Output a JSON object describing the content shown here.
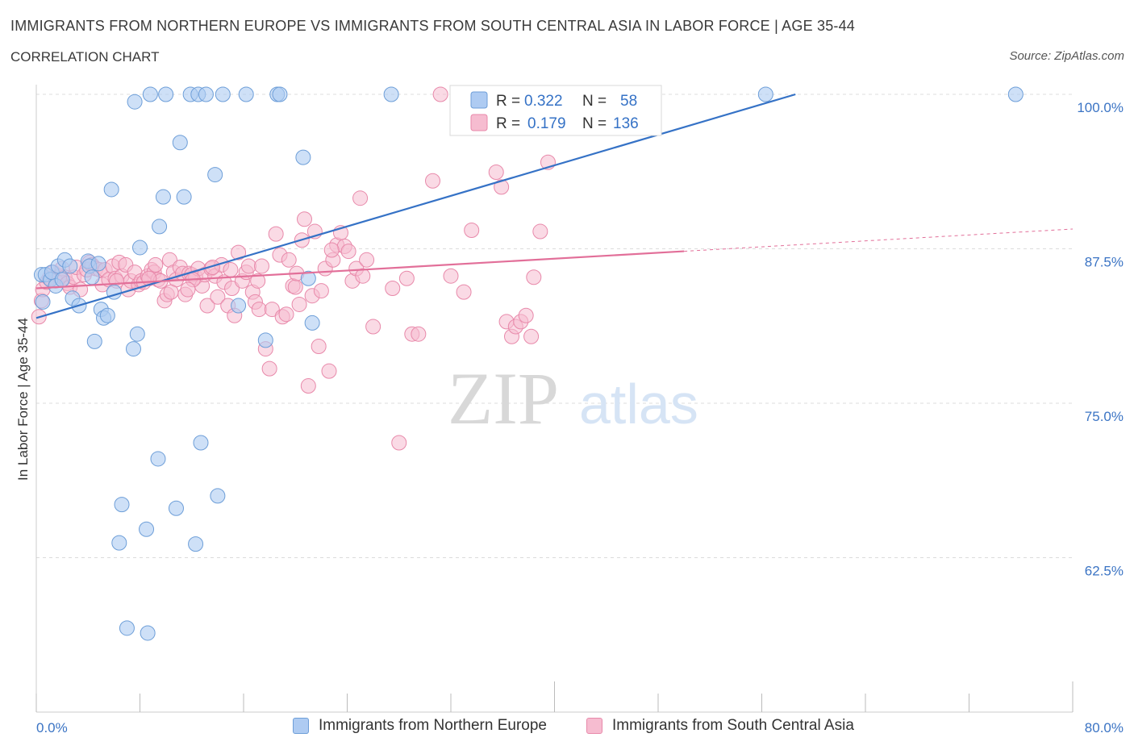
{
  "header": {
    "title": "IMMIGRANTS FROM NORTHERN EUROPE VS IMMIGRANTS FROM SOUTH CENTRAL ASIA IN LABOR FORCE | AGE 35-44",
    "subtitle": "CORRELATION CHART",
    "source": "Source: ZipAtlas.com"
  },
  "watermark": {
    "zip": "ZIP",
    "atlas": "atlas"
  },
  "colors": {
    "blue_fill": "#aecbf2",
    "blue_stroke": "#6d9ed8",
    "blue_line": "#3572c6",
    "pink_fill": "#f6bcd0",
    "pink_stroke": "#e889aa",
    "pink_line": "#e26f99",
    "tick_text": "#3b74c4",
    "grid": "#dcdcdc"
  },
  "legend_box": {
    "rows": [
      {
        "r_label": "R =",
        "r_value": "0.322",
        "n_label": "N =",
        "n_value": "58"
      },
      {
        "r_label": "R =",
        "r_value": "0.179",
        "n_label": "N =",
        "n_value": "136"
      }
    ]
  },
  "chart_data": {
    "type": "scatter",
    "title": "IMMIGRANTS FROM NORTHERN EUROPE VS IMMIGRANTS FROM SOUTH CENTRAL ASIA IN LABOR FORCE | AGE 35-44",
    "ylabel": "In Labor Force | Age 35-44",
    "xlabel": "",
    "xlim": [
      0,
      80
    ],
    "ylim": [
      50,
      100
    ],
    "x_tick_labels": [
      "0.0%",
      "80.0%"
    ],
    "y_ticks": [
      62.5,
      75.0,
      87.5,
      100.0
    ],
    "y_tick_labels": [
      "62.5%",
      "75.0%",
      "87.5%",
      "100.0%"
    ],
    "grid": true,
    "legend_position": "top-center",
    "series": [
      {
        "name": "Immigrants from Northern Europe",
        "color": "#aecbf2",
        "R": 0.322,
        "N": 58,
        "trend": {
          "x": [
            0,
            58.6
          ],
          "y": [
            81.9,
            100.0
          ],
          "extends_to": 58.6
        },
        "points": [
          [
            0.4,
            85.4
          ],
          [
            0.7,
            85.4
          ],
          [
            1.1,
            85.0
          ],
          [
            1.2,
            85.6
          ],
          [
            1.5,
            84.5
          ],
          [
            1.7,
            86.1
          ],
          [
            2.2,
            86.6
          ],
          [
            2.6,
            86.1
          ],
          [
            2.8,
            83.5
          ],
          [
            3.3,
            82.9
          ],
          [
            4.0,
            86.5
          ],
          [
            4.1,
            86.1
          ],
          [
            4.3,
            85.2
          ],
          [
            4.5,
            80.0
          ],
          [
            4.8,
            86.3
          ],
          [
            5.0,
            82.6
          ],
          [
            5.2,
            81.9
          ],
          [
            5.5,
            82.1
          ],
          [
            5.8,
            92.3
          ],
          [
            6.0,
            84.0
          ],
          [
            6.6,
            66.8
          ],
          [
            7.0,
            56.8
          ],
          [
            7.6,
            99.4
          ],
          [
            7.8,
            80.6
          ],
          [
            7.5,
            79.4
          ],
          [
            8.0,
            87.6
          ],
          [
            8.5,
            64.8
          ],
          [
            8.6,
            56.4
          ],
          [
            8.8,
            100.0
          ],
          [
            9.4,
            70.5
          ],
          [
            9.5,
            89.3
          ],
          [
            9.8,
            91.7
          ],
          [
            10.0,
            100.0
          ],
          [
            10.8,
            66.5
          ],
          [
            11.1,
            96.1
          ],
          [
            11.4,
            91.7
          ],
          [
            11.9,
            100.0
          ],
          [
            12.3,
            63.6
          ],
          [
            12.5,
            100.0
          ],
          [
            12.7,
            71.8
          ],
          [
            13.1,
            100.0
          ],
          [
            13.8,
            93.5
          ],
          [
            14.0,
            67.5
          ],
          [
            14.4,
            100.0
          ],
          [
            15.6,
            82.9
          ],
          [
            16.2,
            100.0
          ],
          [
            17.7,
            80.1
          ],
          [
            18.6,
            100.0
          ],
          [
            18.8,
            100.0
          ],
          [
            20.6,
            94.9
          ],
          [
            21.0,
            85.1
          ],
          [
            21.3,
            81.5
          ],
          [
            27.4,
            100.0
          ],
          [
            6.4,
            63.7
          ],
          [
            56.3,
            100.0
          ],
          [
            75.6,
            100.0
          ],
          [
            0.5,
            83.2
          ],
          [
            2.0,
            85.0
          ]
        ]
      },
      {
        "name": "Immigrants from South Central Asia",
        "color": "#f6bcd0",
        "R": 0.179,
        "N": 136,
        "trend": {
          "x": [
            0,
            50.0,
            80.0
          ],
          "y": [
            84.3,
            87.3,
            89.1
          ],
          "dashed_from": 50.0
        },
        "points": [
          [
            0.2,
            82.0
          ],
          [
            0.4,
            83.3
          ],
          [
            0.5,
            84.2
          ],
          [
            0.8,
            84.8
          ],
          [
            1.0,
            85.1
          ],
          [
            1.3,
            85.6
          ],
          [
            1.5,
            84.9
          ],
          [
            1.8,
            85.3
          ],
          [
            2.0,
            85.9
          ],
          [
            2.2,
            85.2
          ],
          [
            2.4,
            84.7
          ],
          [
            2.6,
            84.4
          ],
          [
            2.9,
            85.2
          ],
          [
            3.1,
            86.0
          ],
          [
            3.4,
            84.2
          ],
          [
            3.7,
            85.4
          ],
          [
            3.9,
            85.8
          ],
          [
            4.1,
            86.4
          ],
          [
            4.3,
            86.2
          ],
          [
            4.6,
            85.9
          ],
          [
            4.9,
            85.8
          ],
          [
            5.1,
            84.6
          ],
          [
            5.3,
            85.8
          ],
          [
            5.6,
            85.0
          ],
          [
            5.9,
            86.1
          ],
          [
            6.1,
            85.1
          ],
          [
            6.4,
            86.4
          ],
          [
            6.6,
            85.3
          ],
          [
            6.9,
            86.2
          ],
          [
            7.1,
            84.2
          ],
          [
            7.3,
            84.9
          ],
          [
            7.6,
            85.6
          ],
          [
            7.9,
            84.6
          ],
          [
            8.1,
            84.9
          ],
          [
            8.3,
            84.8
          ],
          [
            8.6,
            85.3
          ],
          [
            8.9,
            85.8
          ],
          [
            9.1,
            85.6
          ],
          [
            9.4,
            85.0
          ],
          [
            9.6,
            84.9
          ],
          [
            9.9,
            83.3
          ],
          [
            10.1,
            83.8
          ],
          [
            10.3,
            86.6
          ],
          [
            10.6,
            85.6
          ],
          [
            10.8,
            85.0
          ],
          [
            11.1,
            86.0
          ],
          [
            11.3,
            85.5
          ],
          [
            11.5,
            83.8
          ],
          [
            11.8,
            85.5
          ],
          [
            12.0,
            85.4
          ],
          [
            12.3,
            85.2
          ],
          [
            12.5,
            85.9
          ],
          [
            12.8,
            84.5
          ],
          [
            13.0,
            85.4
          ],
          [
            13.2,
            82.9
          ],
          [
            13.5,
            85.9
          ],
          [
            13.8,
            85.3
          ],
          [
            14.0,
            83.6
          ],
          [
            14.3,
            86.2
          ],
          [
            14.5,
            84.8
          ],
          [
            14.8,
            82.9
          ],
          [
            15.1,
            84.3
          ],
          [
            15.3,
            82.1
          ],
          [
            15.6,
            87.2
          ],
          [
            15.9,
            84.9
          ],
          [
            16.2,
            85.6
          ],
          [
            16.4,
            86.1
          ],
          [
            16.7,
            84.0
          ],
          [
            16.9,
            83.2
          ],
          [
            17.2,
            82.6
          ],
          [
            17.4,
            86.1
          ],
          [
            17.7,
            79.4
          ],
          [
            18.0,
            77.8
          ],
          [
            18.2,
            82.6
          ],
          [
            18.5,
            88.7
          ],
          [
            18.8,
            87.0
          ],
          [
            19.0,
            82.0
          ],
          [
            19.3,
            82.2
          ],
          [
            19.5,
            86.6
          ],
          [
            19.8,
            84.5
          ],
          [
            20.0,
            84.4
          ],
          [
            20.3,
            83.0
          ],
          [
            20.5,
            88.2
          ],
          [
            20.7,
            89.9
          ],
          [
            21.0,
            76.4
          ],
          [
            21.3,
            83.7
          ],
          [
            21.5,
            88.9
          ],
          [
            21.8,
            79.6
          ],
          [
            22.0,
            84.1
          ],
          [
            22.3,
            85.9
          ],
          [
            22.6,
            77.6
          ],
          [
            22.9,
            86.6
          ],
          [
            23.2,
            87.8
          ],
          [
            23.5,
            88.8
          ],
          [
            23.8,
            87.7
          ],
          [
            24.1,
            87.3
          ],
          [
            24.4,
            84.9
          ],
          [
            24.7,
            85.9
          ],
          [
            25.0,
            91.6
          ],
          [
            25.2,
            85.3
          ],
          [
            25.5,
            86.6
          ],
          [
            26.0,
            81.2
          ],
          [
            27.5,
            84.3
          ],
          [
            28.0,
            71.8
          ],
          [
            28.6,
            85.1
          ],
          [
            29.0,
            80.6
          ],
          [
            29.5,
            80.6
          ],
          [
            30.6,
            93.0
          ],
          [
            31.2,
            100.0
          ],
          [
            32.0,
            85.3
          ],
          [
            33.0,
            84.0
          ],
          [
            33.6,
            89.0
          ],
          [
            35.0,
            97.6
          ],
          [
            35.5,
            93.7
          ],
          [
            35.9,
            92.5
          ],
          [
            36.3,
            81.6
          ],
          [
            36.7,
            80.4
          ],
          [
            37.0,
            81.2
          ],
          [
            37.4,
            81.6
          ],
          [
            37.8,
            82.1
          ],
          [
            38.2,
            80.4
          ],
          [
            38.4,
            85.2
          ],
          [
            38.9,
            88.9
          ],
          [
            39.5,
            94.5
          ],
          [
            41.9,
            100.0
          ],
          [
            22.8,
            87.4
          ],
          [
            20.1,
            85.5
          ],
          [
            17.1,
            84.9
          ],
          [
            15.0,
            85.8
          ],
          [
            13.6,
            86.0
          ],
          [
            12.1,
            85.0
          ],
          [
            11.7,
            84.2
          ],
          [
            10.4,
            84.0
          ],
          [
            9.2,
            86.2
          ],
          [
            8.7,
            85.1
          ],
          [
            6.2,
            84.9
          ]
        ]
      }
    ]
  },
  "bottom_legend": [
    {
      "label": "Immigrants from Northern Europe"
    },
    {
      "label": "Immigrants from South Central Asia"
    }
  ]
}
